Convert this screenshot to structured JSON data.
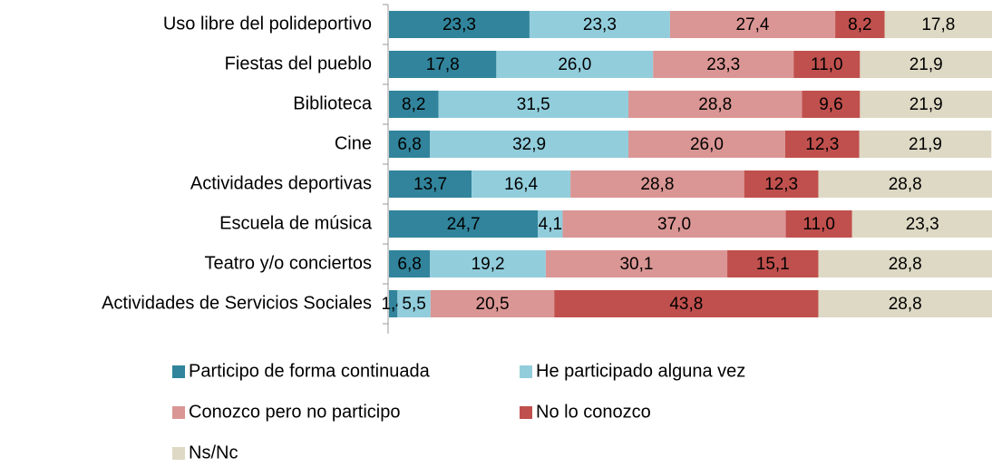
{
  "chart_data": {
    "type": "stacked_bar_horizontal",
    "categories": [
      "Uso libre del polideportivo",
      "Fiestas del pueblo",
      "Biblioteca",
      "Cine",
      "Actividades deportivas",
      "Escuela de música",
      "Teatro y/o conciertos",
      "Actividades de Servicios Sociales"
    ],
    "xlim": [
      0,
      100
    ],
    "legend": "bottom",
    "series": [
      {
        "name": "Participo de forma continuada",
        "color": "#31849b",
        "values": [
          23.3,
          17.8,
          8.2,
          6.8,
          13.7,
          24.7,
          6.8,
          1.4
        ],
        "value_labels": [
          "23,3",
          "17,8",
          "8,2",
          "6,8",
          "13,7",
          "24,7",
          "6,8",
          "1,4"
        ]
      },
      {
        "name": "He participado alguna vez",
        "color": "#92cddc",
        "values": [
          23.3,
          26.0,
          31.5,
          32.9,
          16.4,
          4.1,
          19.2,
          5.5
        ],
        "value_labels": [
          "23,3",
          "26,0",
          "31,5",
          "32,9",
          "16,4",
          "4,1",
          "19,2",
          "5,5"
        ]
      },
      {
        "name": "Conozco pero no participo",
        "color": "#da9694",
        "values": [
          27.4,
          23.3,
          28.8,
          26.0,
          28.8,
          37.0,
          30.1,
          20.5
        ],
        "value_labels": [
          "27,4",
          "23,3",
          "28,8",
          "26,0",
          "28,8",
          "37,0",
          "30,1",
          "20,5"
        ]
      },
      {
        "name": "No lo conozco",
        "color": "#c0504d",
        "values": [
          8.2,
          11.0,
          9.6,
          12.3,
          12.3,
          11.0,
          15.1,
          43.8
        ],
        "value_labels": [
          "8,2",
          "11,0",
          "9,6",
          "12,3",
          "12,3",
          "11,0",
          "15,1",
          "43,8"
        ]
      },
      {
        "name": "Ns/Nc",
        "color": "#ddd9c4",
        "values": [
          17.8,
          21.9,
          21.9,
          21.9,
          28.8,
          23.3,
          28.8,
          28.8
        ],
        "value_labels": [
          "17,8",
          "21,9",
          "21,9",
          "21,9",
          "28,8",
          "23,3",
          "28,8",
          "28,8"
        ]
      }
    ]
  }
}
